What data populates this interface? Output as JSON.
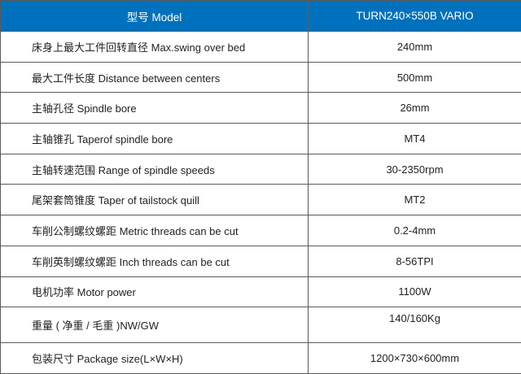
{
  "header": {
    "label": "型号 Model",
    "value": "TURN240×550B VARIO"
  },
  "accent_color": "#0071bc",
  "rows": [
    {
      "label": "床身上最大工件回转直径 Max.swing over bed",
      "value": "240mm"
    },
    {
      "label": "最大工件长度 Distance between centers",
      "value": "500mm"
    },
    {
      "label": "主轴孔径 Spindle bore",
      "value": "26mm"
    },
    {
      "label": "主轴锥孔 Taperof spindle bore",
      "value": "MT4"
    },
    {
      "label": "主轴转速范围 Range of spindle speeds",
      "value": "30-2350rpm"
    },
    {
      "label": "尾架套筒锥度 Taper of tailstock quill",
      "value": "MT2"
    },
    {
      "label": "车削公制螺纹螺距 Metric threads can be cut",
      "value": "0.2-4mm"
    },
    {
      "label": "车削英制螺纹螺距 Inch threads can be cut",
      "value": "8-56TPI"
    },
    {
      "label": "电机功率 Motor power",
      "value": "1100W"
    },
    {
      "label": "重量 ( 净重 / 毛重 )NW/GW",
      "value": "140/160Kg"
    },
    {
      "label": "包装尺寸 Package size(L×W×H)",
      "value": "1200×730×600mm"
    }
  ]
}
